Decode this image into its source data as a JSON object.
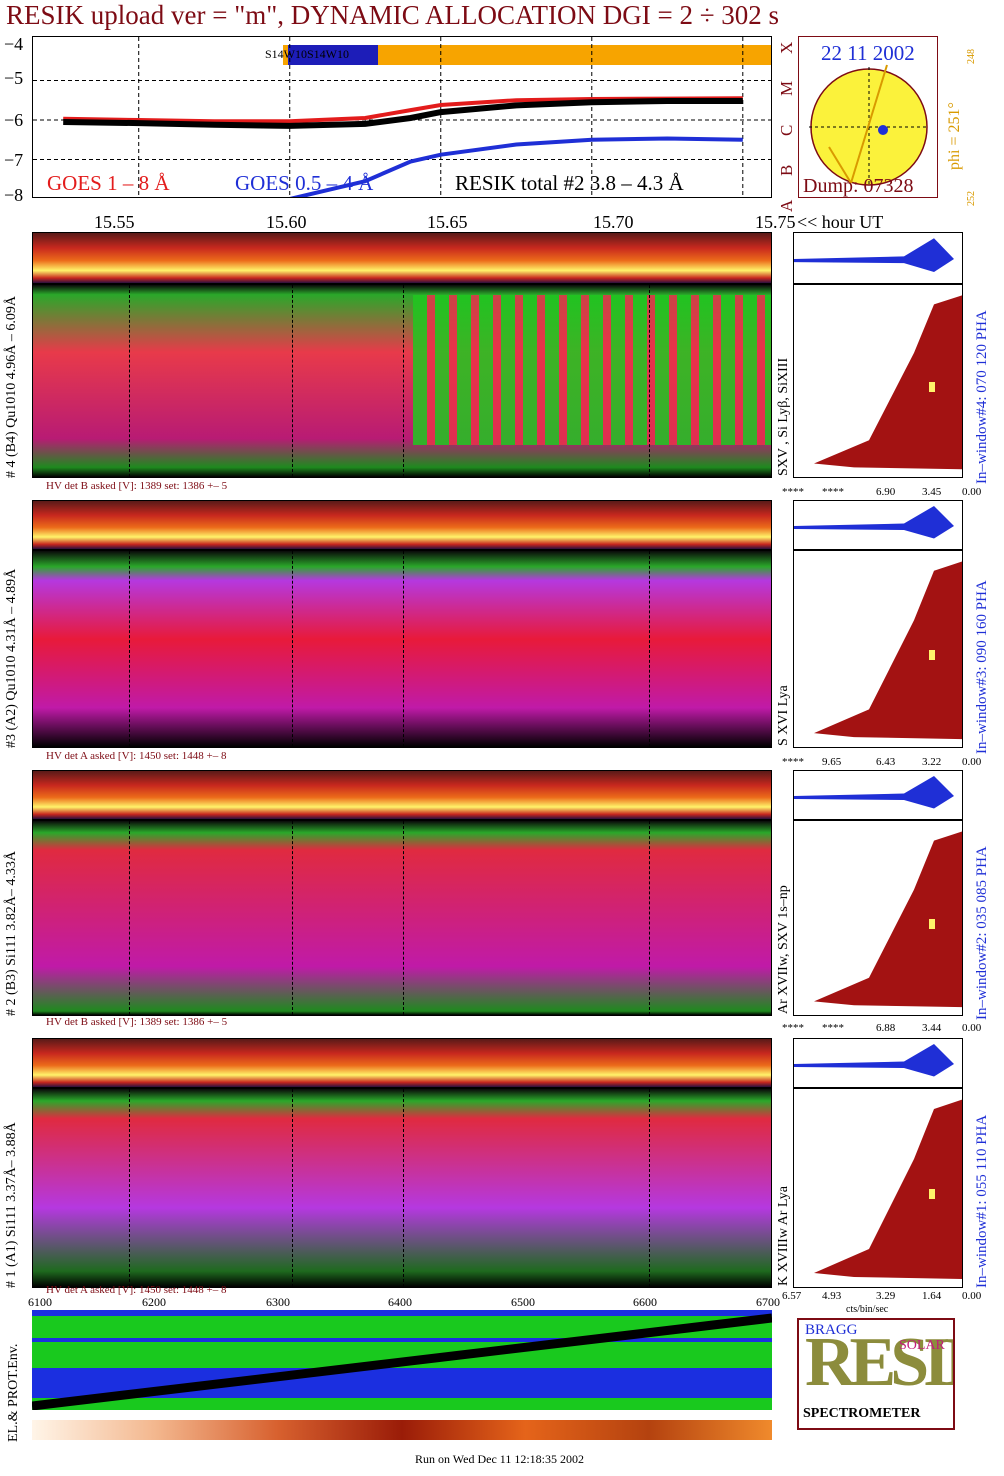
{
  "header": {
    "title": "RESIK upload ver = \"m\", DYNAMIC ALLOCATION  DGI =   2 ÷ 302 s"
  },
  "goes": {
    "y_ticks": [
      "−4",
      "−5",
      "−6",
      "−7",
      "−8"
    ],
    "class_labels": [
      "X",
      "M",
      "C",
      "B",
      "A"
    ],
    "bar_label": "S14W10S14W10",
    "legend_goes18": "GOES 1 – 8 Å",
    "legend_goes054": "GOES 0.5 – 4 Å",
    "legend_resik": "RESIK total #2  3.8 – 4.3 Å",
    "colors": {
      "goes18": "#e31c1c",
      "goes054": "#1f2fd6",
      "resik": "#000000",
      "bar": "#f7a400",
      "bar_dark": "#1d1db8"
    }
  },
  "sun": {
    "date": "22 11 2002",
    "dump": "Dump: 07328",
    "phi_label": "phi = 251°",
    "phi_top": "248",
    "phi_bottom": "252"
  },
  "time_axis": {
    "labels": [
      "15.55",
      "15.60",
      "15.65",
      "15.70",
      "15.75"
    ],
    "suffix": "<< hour UT"
  },
  "panels": [
    {
      "id": "4",
      "side_label": "# 4 (B4) Qu1010 4.96Å – 6.09Å",
      "line_label": "SXV , Si Lyβ, SiXIII",
      "window_label": "In–window#4:  070 120 PHA",
      "hv": "HV det B asked [V]:  1389 set:  1386 +–   5",
      "pha_ticks": [
        "****",
        "****",
        "6.90",
        "3.45",
        "0.00"
      ]
    },
    {
      "id": "3",
      "side_label": "#3 (A2) Qu1010  4.31Å – 4.89Å",
      "line_label": "S XVI Lya",
      "window_label": "In–window#3:  090 160 PHA",
      "hv": "HV det A asked [V]:  1450 set:  1448 +–   8",
      "pha_ticks": [
        "****",
        "9.65",
        "6.43",
        "3.22",
        "0.00"
      ]
    },
    {
      "id": "2",
      "side_label": "# 2 (B3) Si111  3.82Å– 4.33Å",
      "line_label": "Ar XVIIw,  SXV 1s–np",
      "window_label": "In–window#2:  035 085 PHA",
      "hv": "HV det B asked [V]:  1389 set:  1386 +–   5",
      "pha_ticks": [
        "****",
        "****",
        "6.88",
        "3.44",
        "0.00"
      ]
    },
    {
      "id": "1",
      "side_label": "# 1 (A1) Si111  3.37Å– 3.88Å",
      "line_label": "K XVIIIw  Ar Lya",
      "window_label": "In–window#1:  055 110 PHA",
      "hv": "HV det A asked [V]:  1450 set:  1448 +–   8",
      "pha_ticks": [
        "6.57",
        "4.93",
        "3.29",
        "1.64",
        "0.00"
      ],
      "unit": "cts/bin/sec"
    }
  ],
  "bottom_axis": {
    "labels": [
      "6100",
      "6200",
      "6300",
      "6400",
      "6500",
      "6600",
      "6700"
    ]
  },
  "env": {
    "label": "EL.& PROT.Env."
  },
  "logo": {
    "big": "RESIK",
    "bragg": "BRAGG",
    "solar": "SOLAR",
    "spectrometer": "SPECTROMETER"
  },
  "footer": {
    "run": "Run on Wed Dec 11 12:18:35 2002"
  },
  "chart_data": {
    "type": "line",
    "title": "RESIK upload ver = \"m\", DYNAMIC ALLOCATION  DGI =   2 ÷ 302 s",
    "xlabel": "<< hour UT",
    "ylabel": "",
    "x_ticks": [
      15.55,
      15.6,
      15.65,
      15.7,
      15.75
    ],
    "ylim": [
      -8.0,
      -3.9
    ],
    "x": [
      15.525,
      15.55,
      15.575,
      15.6,
      15.625,
      15.64,
      15.65,
      15.675,
      15.7,
      15.725,
      15.75
    ],
    "series": [
      {
        "name": "GOES 1 – 8 Å",
        "color": "#e31c1c",
        "values": [
          -5.97,
          -6.0,
          -6.03,
          -6.03,
          -5.95,
          -5.75,
          -5.62,
          -5.5,
          -5.47,
          -5.46,
          -5.45
        ]
      },
      {
        "name": "GOES 0.5 – 4 Å",
        "color": "#1f2fd6",
        "values": [
          null,
          null,
          null,
          -8.0,
          -7.55,
          -7.05,
          -6.88,
          -6.62,
          -6.5,
          -6.47,
          -6.5
        ]
      },
      {
        "name": "RESIK total #2  3.8 – 4.3 Å",
        "color": "#000000",
        "values": [
          -6.05,
          -6.08,
          -6.12,
          -6.15,
          -6.1,
          -5.95,
          -5.8,
          -5.63,
          -5.55,
          -5.52,
          -5.52
        ]
      }
    ]
  }
}
